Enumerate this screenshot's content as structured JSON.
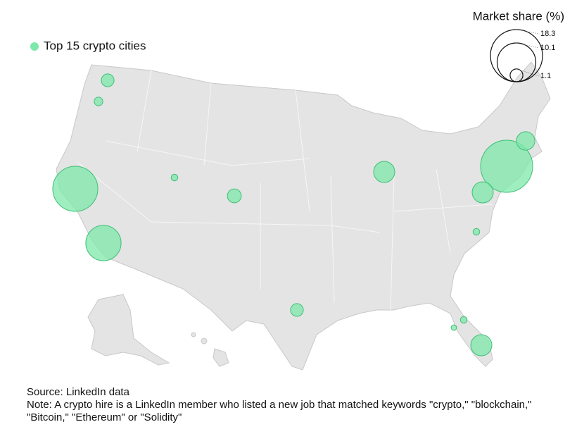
{
  "chart_data": {
    "type": "bubble-map",
    "legend": "Top 15 crypto cities",
    "color": "#7de8a9",
    "size_legend": {
      "title": "Market share (%)",
      "values": [
        18.3,
        10.1,
        1.1
      ]
    },
    "values": [
      1.1,
      0.5,
      13.7,
      8.4,
      0.3,
      1.3,
      3.0,
      18.3,
      2.3,
      3.0,
      0.3,
      1.1,
      0.3,
      0.2,
      3.0
    ],
    "source": "Source: LinkedIn data",
    "note": "Note: A crypto hire is a LinkedIn member who listed a new job that matched keywords \"crypto,\" \"blockchain,\" \"Bitcoin,\" \"Ethereum\" or \"Solidity\""
  }
}
